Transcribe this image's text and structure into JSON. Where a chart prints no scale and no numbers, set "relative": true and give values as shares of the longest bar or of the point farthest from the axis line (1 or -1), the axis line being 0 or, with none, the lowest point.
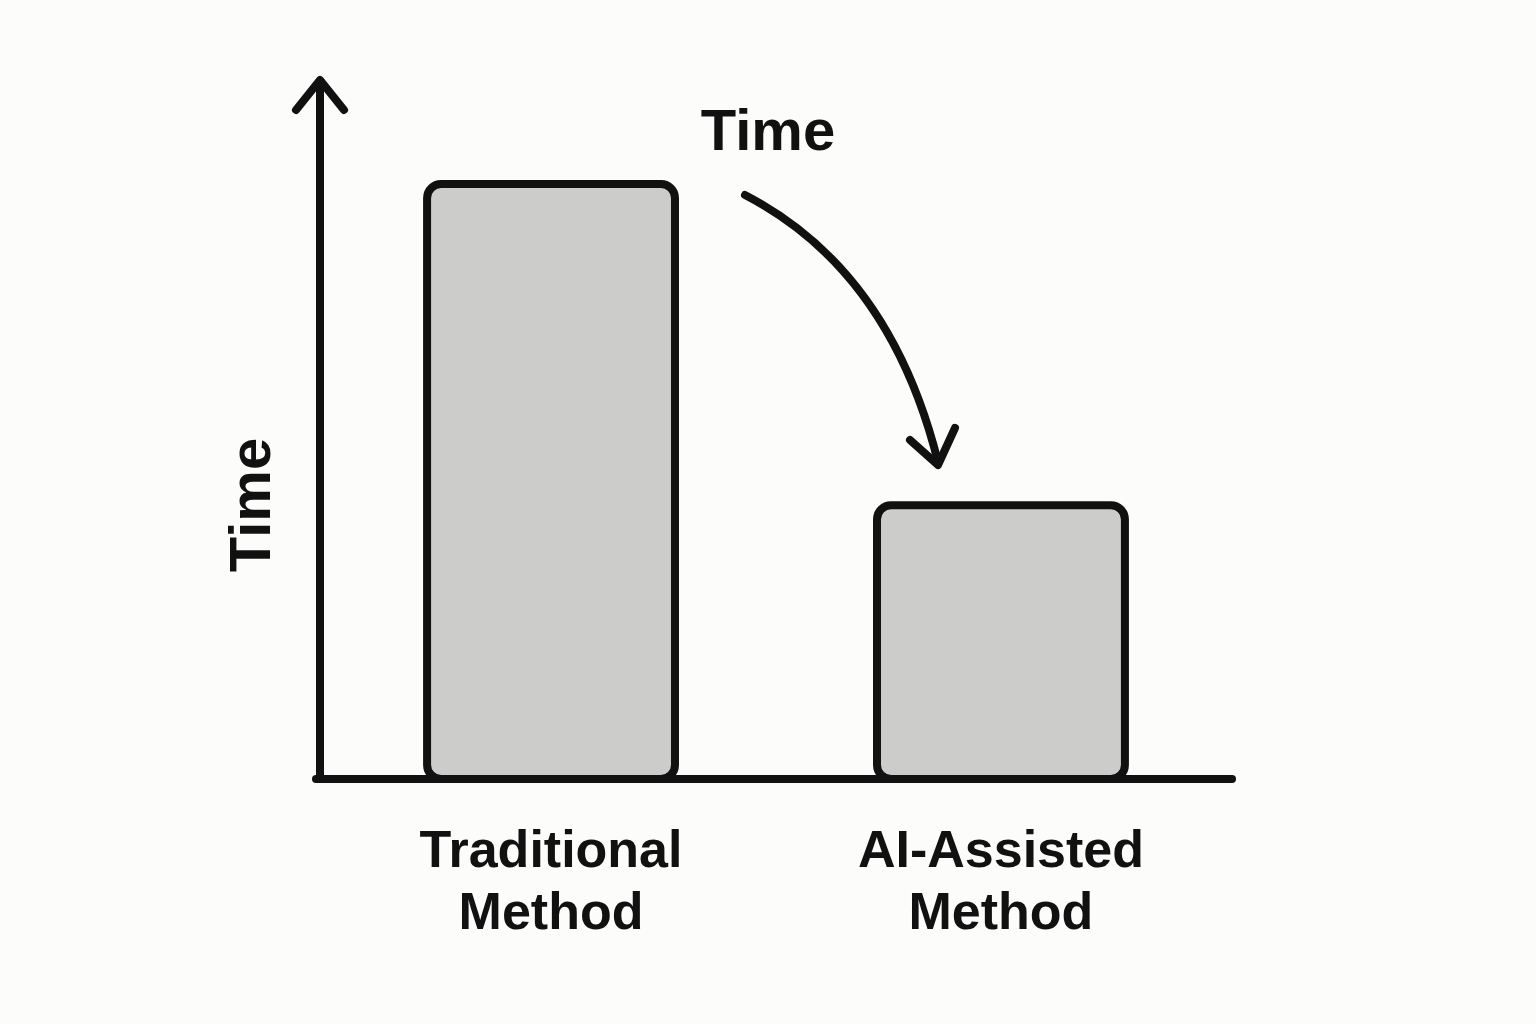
{
  "chart_data": {
    "type": "bar",
    "relative": true,
    "ylabel": "Time",
    "categories": [
      "Traditional Method",
      "AI-Assisted Method"
    ],
    "values": [
      1,
      0.46
    ],
    "color": "#cccccb",
    "annotations": [
      "Time"
    ]
  }
}
